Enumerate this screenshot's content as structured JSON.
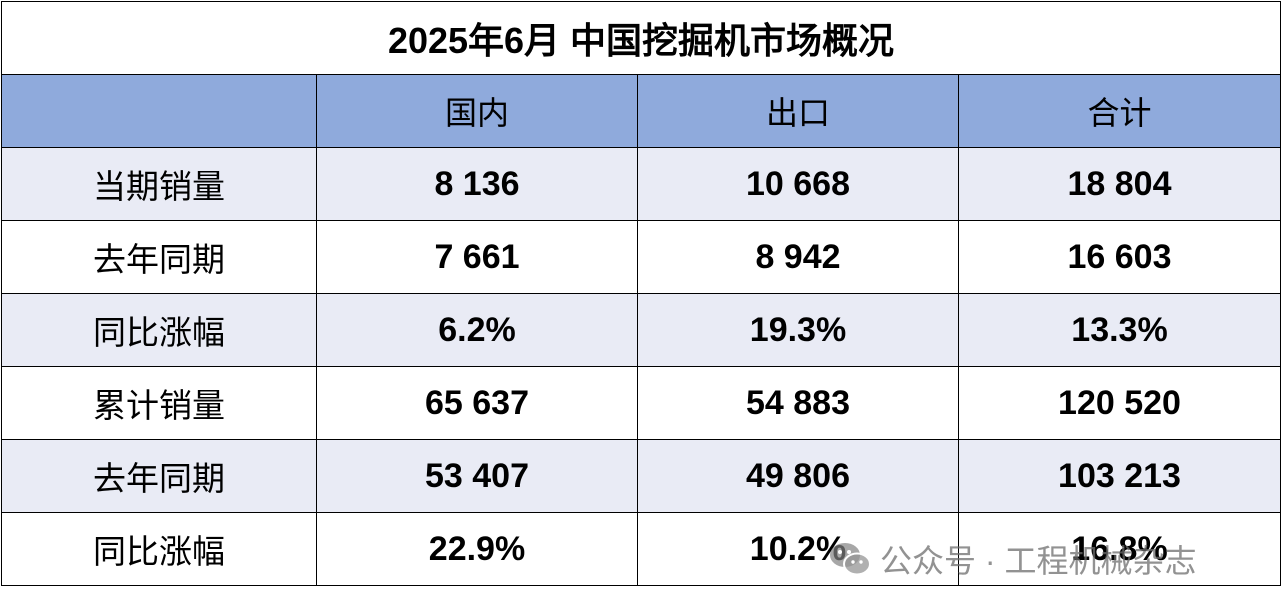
{
  "table": {
    "title": "2025年6月 中国挖掘机市场概况",
    "header": [
      "国内",
      "出口",
      "合计"
    ],
    "rows": [
      [
        "当期销量",
        "8 136",
        "10 668",
        "18 804"
      ],
      [
        "去年同期",
        "7 661",
        "8 942",
        "16 603"
      ],
      [
        "同比涨幅",
        "6.2%",
        "19.3%",
        "13.3%"
      ],
      [
        "累计销量",
        "65 637",
        "54 883",
        "120 520"
      ],
      [
        "去年同期",
        "53 407",
        "49 806",
        "103 213"
      ],
      [
        "同比涨幅",
        "22.9%",
        "10.2%",
        "16.8%"
      ]
    ]
  },
  "watermark": "公众号 · 工程机械杂志"
}
